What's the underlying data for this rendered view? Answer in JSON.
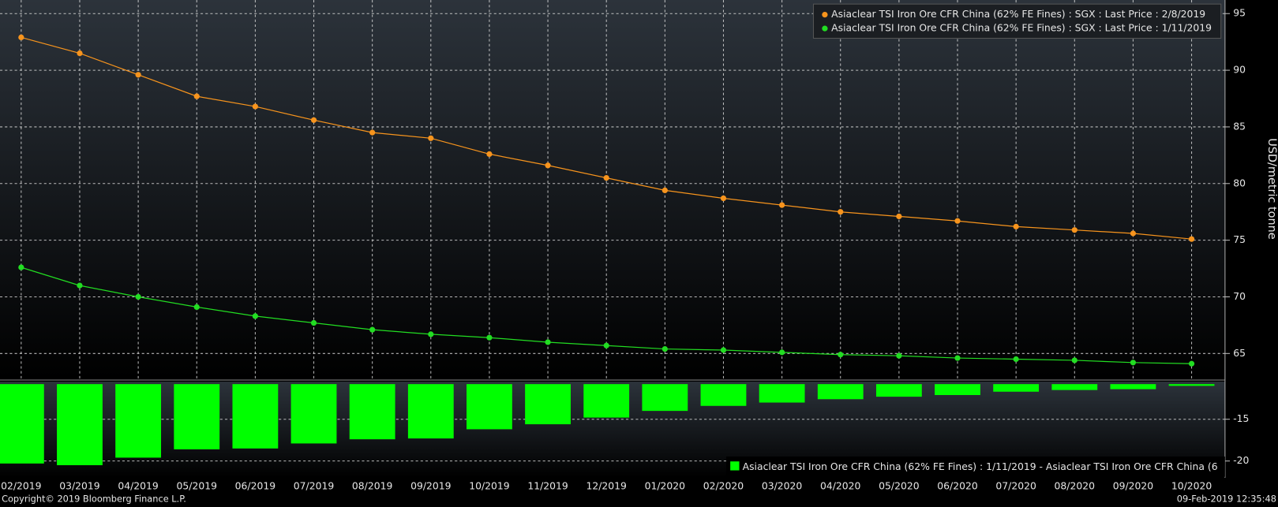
{
  "chart_data": [
    {
      "type": "line",
      "y_label": "USD/metric tonne",
      "ylim": [
        62.8,
        96.2
      ],
      "yticks": [
        65,
        70,
        75,
        80,
        85,
        90,
        95
      ],
      "grid": true,
      "legend": "top-right",
      "series": [
        {
          "name": "Asiaclear TSI Iron Ore CFR China (62% FE Fines) : SGX : Last Price : 2/8/2019",
          "color": "#f7941d",
          "values": [
            92.9,
            91.5,
            89.6,
            87.7,
            86.8,
            85.6,
            84.5,
            84.0,
            82.6,
            81.6,
            80.5,
            79.4,
            78.7,
            78.1,
            77.5,
            77.1,
            76.7,
            76.2,
            75.9,
            75.6,
            75.1
          ]
        },
        {
          "name": "Asiaclear TSI Iron Ore CFR China (62% FE Fines) : SGX : Last Price : 1/11/2019",
          "color": "#22dd22",
          "values": [
            72.6,
            71.0,
            70.0,
            69.1,
            68.3,
            67.7,
            67.1,
            66.7,
            66.4,
            66.0,
            65.7,
            65.4,
            65.3,
            65.1,
            64.9,
            64.8,
            64.6,
            64.5,
            64.4,
            64.2,
            64.1
          ]
        }
      ]
    },
    {
      "type": "bar",
      "categories": [
        "02/2019",
        "03/2019",
        "04/2019",
        "05/2019",
        "06/2019",
        "07/2019",
        "08/2019",
        "09/2019",
        "10/2019",
        "11/2019",
        "12/2019",
        "01/2020",
        "02/2020",
        "03/2020",
        "04/2020",
        "05/2020",
        "06/2020",
        "07/2020",
        "08/2020",
        "09/2020",
        "10/2020"
      ],
      "ylim": [
        -22.0,
        -10.5
      ],
      "yticks": [
        -15,
        -20
      ],
      "grid": true,
      "legend": "bottom-right",
      "series": [
        {
          "name": "Asiaclear TSI Iron Ore CFR China (62% FE Fines) : 1/11/2019 - Asiaclear TSI Iron Ore CFR China (6",
          "color": "#00ff00",
          "values": [
            -20.3,
            -20.5,
            -19.6,
            -18.6,
            -18.5,
            -17.9,
            -17.4,
            -17.3,
            -16.2,
            -15.6,
            -14.8,
            -14.0,
            -13.4,
            -13.0,
            -12.6,
            -12.3,
            -12.1,
            -11.7,
            -11.5,
            -11.4,
            -11.0
          ]
        }
      ]
    }
  ],
  "footer": {
    "copyright": "Copyright© 2019 Bloomberg Finance L.P.",
    "timestamp": "09-Feb-2019 12:35:48"
  }
}
